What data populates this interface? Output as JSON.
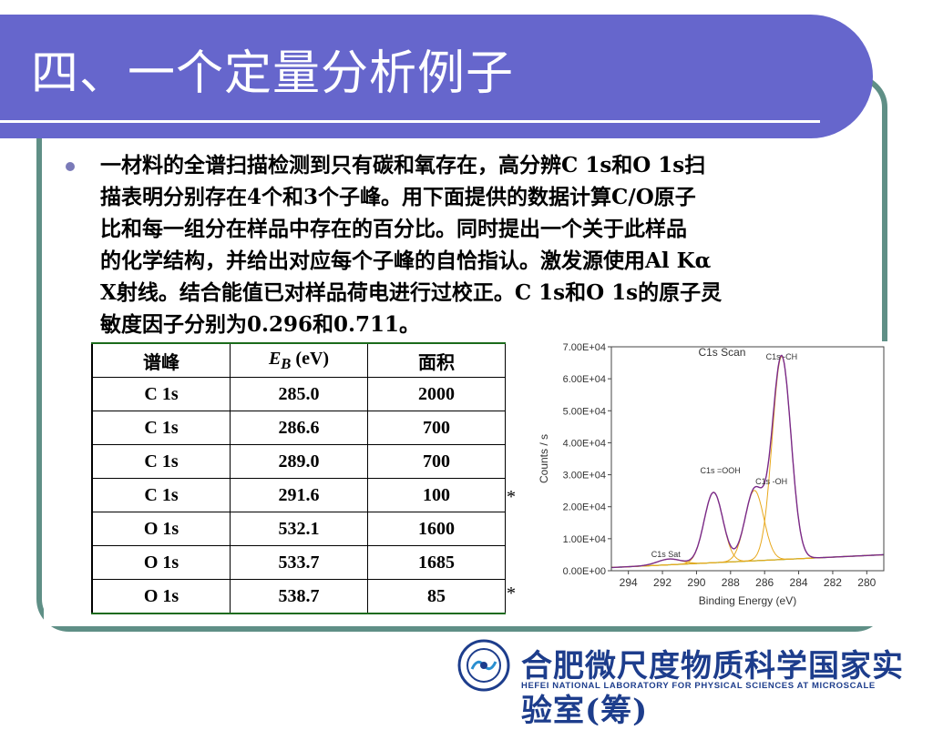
{
  "slide": {
    "title": "四、一个定量分析例子",
    "paragraph_lines": [
      "一材料的全谱扫描检测到只有碳和氧存在，高分辨C 1s和O 1s扫",
      "描表明分别存在4个和3个子峰。用下面提供的数据计算C/O原子",
      "比和每一组分在样品中存在的百分比。同时提出一个关于此样品",
      "的化学结构，并给出对应每个子峰的自恰指认。激发源使用Al Kα",
      "X射线。结合能值已对样品荷电进行过校正。C 1s和O 1s的原子灵",
      "敏度因子分别为0.296和0.711。"
    ]
  },
  "table": {
    "headers": [
      "谱峰",
      "E",
      "B",
      "(eV)",
      "面积"
    ],
    "rows": [
      [
        "C 1s",
        "285.0",
        "2000",
        ""
      ],
      [
        "C 1s",
        "286.6",
        "700",
        ""
      ],
      [
        "C 1s",
        "289.0",
        "700",
        ""
      ],
      [
        "C 1s",
        "291.6",
        "100",
        "*"
      ],
      [
        "O 1s",
        "532.1",
        "1600",
        ""
      ],
      [
        "O 1s",
        "533.7",
        "1685",
        ""
      ],
      [
        "O 1s",
        "538.7",
        "85",
        "*"
      ]
    ]
  },
  "chart_data": {
    "type": "line",
    "title": "C1s Scan",
    "xlabel": "Binding Energy (eV)",
    "ylabel": "Counts / s",
    "xlim": [
      295,
      279
    ],
    "ylim": [
      0,
      70000
    ],
    "x_ticks": [
      "294",
      "292",
      "290",
      "288",
      "286",
      "284",
      "282",
      "280"
    ],
    "y_ticks": [
      "0.00E+00",
      "1.00E+04",
      "2.00E+04",
      "3.00E+04",
      "4.00E+04",
      "5.00E+04",
      "6.00E+04",
      "7.00E+04"
    ],
    "peak_labels": [
      {
        "text": "C1s -CH",
        "x": 285.0,
        "y": 66000
      },
      {
        "text": "C1s =OOH",
        "x": 288.6,
        "y": 30500
      },
      {
        "text": "C1s -OH",
        "x": 285.6,
        "y": 27000
      },
      {
        "text": "C1s Sat",
        "x": 291.8,
        "y": 4200
      }
    ],
    "peaks": [
      {
        "center": 285.0,
        "height": 63500,
        "width": 0.55
      },
      {
        "center": 286.6,
        "height": 22000,
        "width": 0.55
      },
      {
        "center": 289.0,
        "height": 22000,
        "width": 0.55
      },
      {
        "center": 291.6,
        "height": 1800,
        "width": 0.7
      }
    ],
    "baseline": {
      "start": 1000,
      "end": 5000
    },
    "colors": {
      "envelope": "#7a2a8a",
      "components": "#e8a81c",
      "baseline": "#33bb33",
      "axis": "#444444"
    }
  },
  "footer": {
    "cn": "合肥微尺度物质科学国家实验室(筹)",
    "en": "HEFEI NATIONAL LABORATORY FOR PHYSICAL SCIENCES AT MICROSCALE"
  }
}
